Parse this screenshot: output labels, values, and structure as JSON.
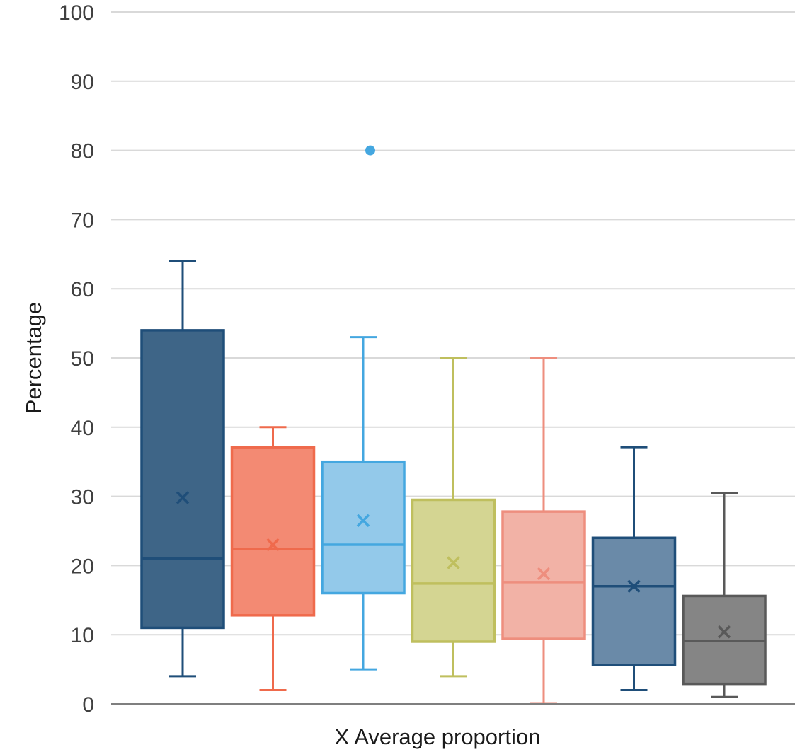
{
  "chart_data": {
    "type": "boxplot",
    "xlabel": "X Average proportion",
    "ylabel": "Percentage",
    "ylim": [
      0,
      100
    ],
    "yticks": [
      0,
      10,
      20,
      30,
      40,
      50,
      60,
      70,
      80,
      90,
      100
    ],
    "grid": true,
    "series": [
      {
        "min": 4,
        "q1": 11,
        "median": 21,
        "q3": 54,
        "max": 64,
        "mean": 29.8,
        "outliers": [],
        "color": "#1f4e79",
        "fill": "#3e6587"
      },
      {
        "min": 2,
        "q1": 12.8,
        "median": 22.4,
        "q3": 37.1,
        "max": 40,
        "mean": 23,
        "outliers": [],
        "color": "#ef6a4c",
        "fill": "#f38a73"
      },
      {
        "min": 5,
        "q1": 16,
        "median": 23,
        "q3": 35,
        "max": 53,
        "mean": 26.5,
        "outliers": [
          80
        ],
        "color": "#44a7e0",
        "fill": "#93c9ea"
      },
      {
        "min": 4,
        "q1": 9,
        "median": 17.4,
        "q3": 29.5,
        "max": 50,
        "mean": 20.4,
        "outliers": [],
        "color": "#bfbf5e",
        "fill": "#d4d592"
      },
      {
        "min": 0,
        "q1": 9.4,
        "median": 17.6,
        "q3": 27.8,
        "max": 50,
        "mean": 18.8,
        "outliers": [],
        "color": "#ee8e7e",
        "fill": "#f2b2a6"
      },
      {
        "min": 2,
        "q1": 5.6,
        "median": 17,
        "q3": 24,
        "max": 37.1,
        "mean": 17,
        "outliers": [],
        "color": "#1f4e79",
        "fill": "#6a8aa8"
      },
      {
        "min": 1,
        "q1": 2.9,
        "median": 9.1,
        "q3": 15.6,
        "max": 30.5,
        "mean": 10.4,
        "outliers": [],
        "color": "#595959",
        "fill": "#858585"
      }
    ]
  }
}
